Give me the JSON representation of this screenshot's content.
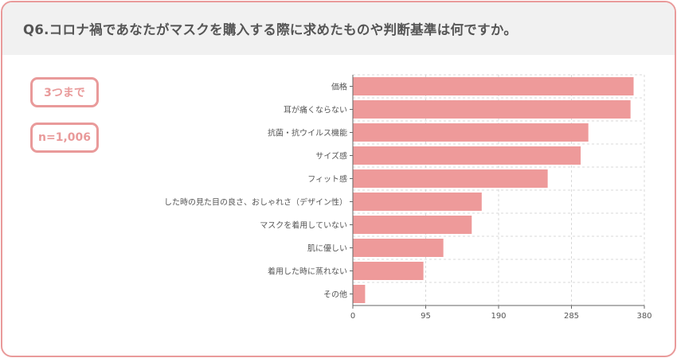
{
  "header": {
    "title": "Q6.コロナ禍であなたがマスクを購入する際に求めたものや判断基準は何ですか。"
  },
  "badges": {
    "selection": "3つまで",
    "sample": "n=1,006"
  },
  "colors": {
    "bar": "#ee9a9a",
    "border": "#e99a9a",
    "header_bg": "#f1f1f1",
    "text": "#555555",
    "grid": "#d8d8d8"
  },
  "chart_data": {
    "type": "bar",
    "orientation": "horizontal",
    "categories": [
      "価格",
      "耳が痛くならない",
      "抗菌・抗ウイルス機能",
      "サイズ感",
      "フィット感",
      "した時の見た目の良さ、おしゃれさ（デザイン性）",
      "マスクを着用していない",
      "肌に優しい",
      "着用した時に蒸れない",
      "その他"
    ],
    "values": [
      366,
      362,
      307,
      297,
      254,
      168,
      155,
      118,
      92,
      16
    ],
    "xlim": [
      0,
      380
    ],
    "xticks": [
      "0",
      "95",
      "190",
      "285",
      "380"
    ],
    "grid": true,
    "legend": "none"
  }
}
